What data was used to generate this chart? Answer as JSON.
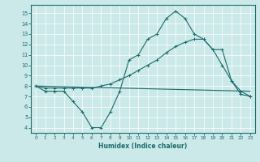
{
  "xlabel": "Humidex (Indice chaleur)",
  "xlim": [
    -0.5,
    23.5
  ],
  "ylim": [
    3.5,
    15.8
  ],
  "xticks": [
    0,
    1,
    2,
    3,
    4,
    5,
    6,
    7,
    8,
    9,
    10,
    11,
    12,
    13,
    14,
    15,
    16,
    17,
    18,
    19,
    20,
    21,
    22,
    23
  ],
  "yticks": [
    4,
    5,
    6,
    7,
    8,
    9,
    10,
    11,
    12,
    13,
    14,
    15
  ],
  "bg_color": "#cce9e9",
  "line_color": "#1a6b6b",
  "line1_x": [
    0,
    1,
    2,
    3,
    4,
    5,
    6,
    7,
    8,
    9,
    10,
    11,
    12,
    13,
    14,
    15,
    16,
    17,
    18,
    19,
    20,
    21,
    22,
    23
  ],
  "line1_y": [
    8.0,
    7.5,
    7.5,
    7.5,
    6.5,
    5.5,
    4.0,
    4.0,
    5.5,
    7.5,
    10.5,
    11.0,
    12.5,
    13.0,
    14.5,
    15.2,
    14.5,
    13.0,
    12.5,
    11.5,
    10.0,
    8.5,
    7.2,
    7.0
  ],
  "line2_x": [
    0,
    23
  ],
  "line2_y": [
    8.0,
    7.5
  ],
  "line3_x": [
    0,
    1,
    2,
    3,
    4,
    5,
    6,
    7,
    8,
    9,
    10,
    11,
    12,
    13,
    14,
    15,
    16,
    17,
    18,
    19,
    20,
    21,
    22,
    23
  ],
  "line3_y": [
    8.0,
    7.8,
    7.8,
    7.8,
    7.8,
    7.8,
    7.8,
    8.0,
    8.2,
    8.6,
    9.0,
    9.5,
    10.0,
    10.5,
    11.2,
    11.8,
    12.2,
    12.5,
    12.5,
    11.5,
    11.5,
    8.5,
    7.5,
    7.0
  ]
}
